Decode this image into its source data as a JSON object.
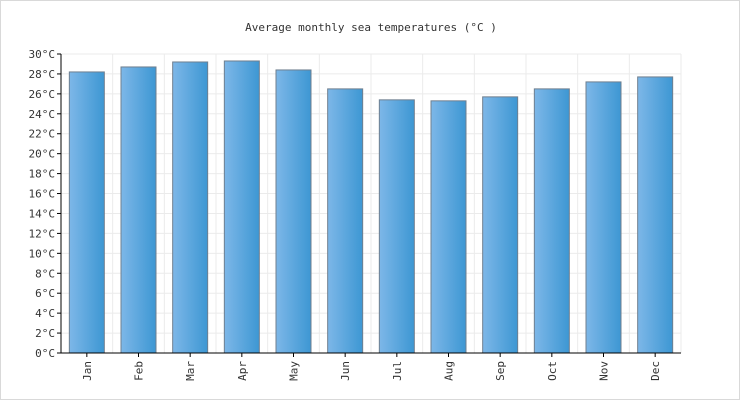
{
  "chart_data": {
    "type": "bar",
    "title": "Average monthly  sea temperatures (°C )",
    "xlabel": "",
    "ylabel": "",
    "categories": [
      "Jan",
      "Feb",
      "Mar",
      "Apr",
      "May",
      "Jun",
      "Jul",
      "Aug",
      "Sep",
      "Oct",
      "Nov",
      "Dec"
    ],
    "values": [
      28.2,
      28.7,
      29.2,
      29.3,
      28.4,
      26.5,
      25.4,
      25.3,
      25.7,
      26.5,
      27.2,
      27.7
    ],
    "ylim": [
      0,
      30
    ],
    "yticks": [
      "0°C",
      "2°C",
      "4°C",
      "6°C",
      "8°C",
      "10°C",
      "12°C",
      "14°C",
      "16°C",
      "18°C",
      "20°C",
      "22°C",
      "24°C",
      "26°C",
      "28°C",
      "30°C"
    ],
    "grid": true,
    "legend": "none",
    "bar_color_light": "#7db7e8",
    "bar_color_dark": "#3d97d3",
    "bar_edge_color": "#6f7f8f",
    "grid_color": "#ebebeb",
    "axis_color": "#000000",
    "text_color": "#333333"
  }
}
